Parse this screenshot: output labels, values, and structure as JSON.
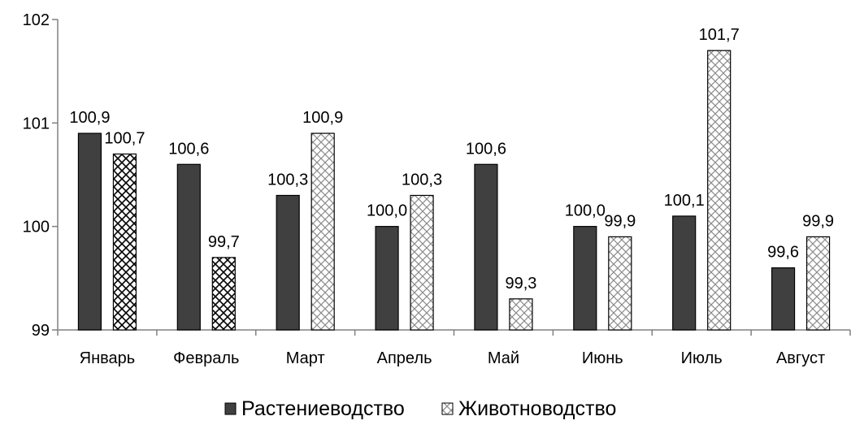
{
  "chart_data": {
    "type": "bar",
    "categories": [
      "Январь",
      "Февраль",
      "Март",
      "Апрель",
      "Май",
      "Июнь",
      "Июль",
      "Август"
    ],
    "series": [
      {
        "name": "Растениеводство",
        "values": [
          100.9,
          100.6,
          100.3,
          100.0,
          100.6,
          100.0,
          100.1,
          99.6
        ],
        "labels": [
          "100,9",
          "100,6",
          "100,3",
          "100,0",
          "100,6",
          "100,0",
          "100,1",
          "99,6"
        ],
        "color": "#404040",
        "pattern": "solid"
      },
      {
        "name": "Животноводство",
        "values": [
          100.7,
          99.7,
          100.9,
          100.3,
          99.3,
          99.9,
          101.7,
          99.9
        ],
        "labels": [
          "100,7",
          "99,7",
          "100,9",
          "100,3",
          "99,3",
          "99,9",
          "101,7",
          "99,9"
        ],
        "color": "#ffffff",
        "pattern": "crosshatch"
      }
    ],
    "ylim": [
      99,
      102
    ],
    "yticks": [
      "99",
      "100",
      "101",
      "102"
    ],
    "title": "",
    "xlabel": "",
    "ylabel": "",
    "grid": false,
    "legend": "bottom"
  }
}
